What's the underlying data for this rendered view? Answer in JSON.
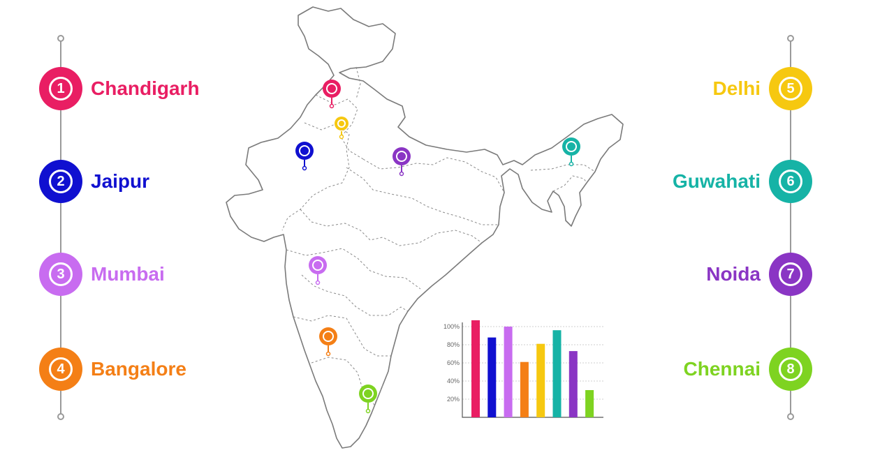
{
  "cities": [
    {
      "num": "1",
      "name": "Chandigarh",
      "color": "#e91e63"
    },
    {
      "num": "2",
      "name": "Jaipur",
      "color": "#1010d0"
    },
    {
      "num": "3",
      "name": "Mumbai",
      "color": "#c86cf0"
    },
    {
      "num": "4",
      "name": "Bangalore",
      "color": "#f47f16"
    },
    {
      "num": "5",
      "name": "Delhi",
      "color": "#f6c810"
    },
    {
      "num": "6",
      "name": "Guwahati",
      "color": "#16b3a6"
    },
    {
      "num": "7",
      "name": "Noida",
      "color": "#8a35c4"
    },
    {
      "num": "8",
      "name": "Chennai",
      "color": "#7ed321"
    }
  ],
  "chart_data": {
    "type": "bar",
    "categories": [
      "Chandigarh",
      "Jaipur",
      "Mumbai",
      "Bangalore",
      "Delhi",
      "Guwahati",
      "Noida",
      "Chennai"
    ],
    "values": [
      107,
      88,
      100,
      61,
      81,
      96,
      73,
      30
    ],
    "colors": [
      "#e91e63",
      "#1010d0",
      "#c86cf0",
      "#f47f16",
      "#f6c810",
      "#16b3a6",
      "#8a35c4",
      "#7ed321"
    ],
    "ylim": [
      0,
      110
    ],
    "yticks": [
      "20%",
      "40%",
      "60%",
      "80%",
      "100%"
    ],
    "grid": true
  }
}
